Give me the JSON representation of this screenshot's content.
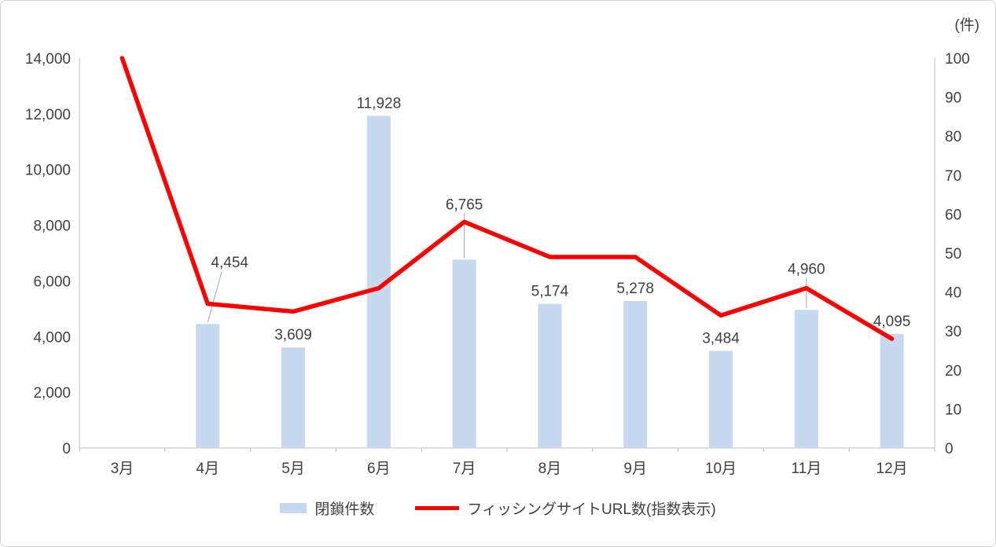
{
  "chart_data": {
    "type": "combo",
    "grid": false,
    "legend_position": "bottom",
    "categories": [
      "3月",
      "4月",
      "5月",
      "6月",
      "7月",
      "8月",
      "9月",
      "10月",
      "11月",
      "12月"
    ],
    "series": [
      {
        "name": "閉鎖件数",
        "type": "bar",
        "axis": "left",
        "color": "#c6d9f1",
        "values": [
          null,
          4454,
          3609,
          11928,
          6765,
          5174,
          5278,
          3484,
          4960,
          4095
        ],
        "data_labels": [
          "",
          "4,454",
          "3,609",
          "11,928",
          "6,765",
          "5,174",
          "5,278",
          "3,484",
          "4,960",
          "4,095"
        ],
        "label_dx": [
          0,
          28,
          0,
          0,
          0,
          0,
          0,
          0,
          0,
          0
        ],
        "label_dy": [
          0,
          -62,
          0,
          0,
          -54,
          0,
          0,
          0,
          -36,
          0
        ],
        "leader_lines": [
          false,
          true,
          false,
          false,
          true,
          false,
          false,
          false,
          true,
          false
        ]
      },
      {
        "name": "フィッシングサイトURL数(指数表示)",
        "type": "line",
        "axis": "right",
        "color": "#ff0000",
        "values": [
          100,
          37,
          35,
          41,
          58,
          49,
          49,
          34,
          41,
          28
        ]
      }
    ],
    "left_axis": {
      "min": 0,
      "max": 14000,
      "step": 2000,
      "tick_labels": [
        "0",
        "2,000",
        "4,000",
        "6,000",
        "8,000",
        "10,000",
        "12,000",
        "14,000"
      ]
    },
    "right_axis": {
      "min": 0,
      "max": 100,
      "step": 10,
      "tick_labels": [
        "0",
        "10",
        "20",
        "30",
        "40",
        "50",
        "60",
        "70",
        "80",
        "90",
        "100"
      ],
      "unit_label": "(件)"
    }
  }
}
